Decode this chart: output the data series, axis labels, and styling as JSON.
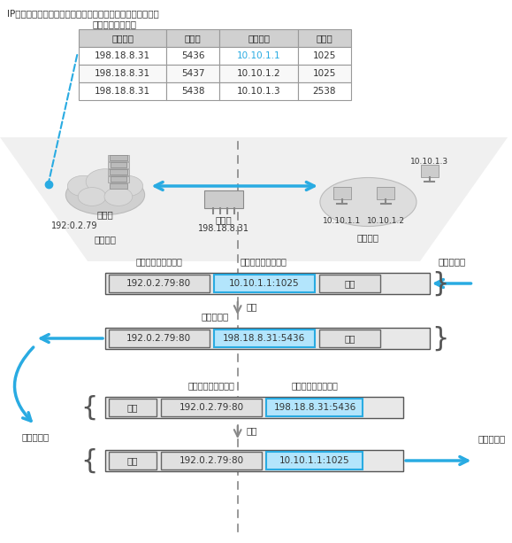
{
  "title_text": "IP地址相同，但端口不同，因此可以识别出对应哪个私有地址",
  "table_title": "地址和端口对应表",
  "table_headers": [
    "公有地址",
    "端口号",
    "私有地址",
    "端口号"
  ],
  "table_rows": [
    [
      "198.18.8.31",
      "5436",
      "10.10.1.1",
      "1025"
    ],
    [
      "198.18.8.31",
      "5437",
      "10.10.1.2",
      "1025"
    ],
    [
      "198.18.8.31",
      "5438",
      "10.10.1.3",
      "2538"
    ]
  ],
  "color_blue": "#29ABE2",
  "color_light_blue": "#B3E5FC",
  "color_cyan_border": "#00BCD4",
  "color_gray_bg": "#E0E0E0",
  "color_light_gray": "#F5F5F5",
  "color_table_header_bg": "#D0D0D0",
  "color_dark_gray": "#555555",
  "color_text": "#333333",
  "color_dashed": "#29ABE2",
  "color_white": "#FFFFFF"
}
